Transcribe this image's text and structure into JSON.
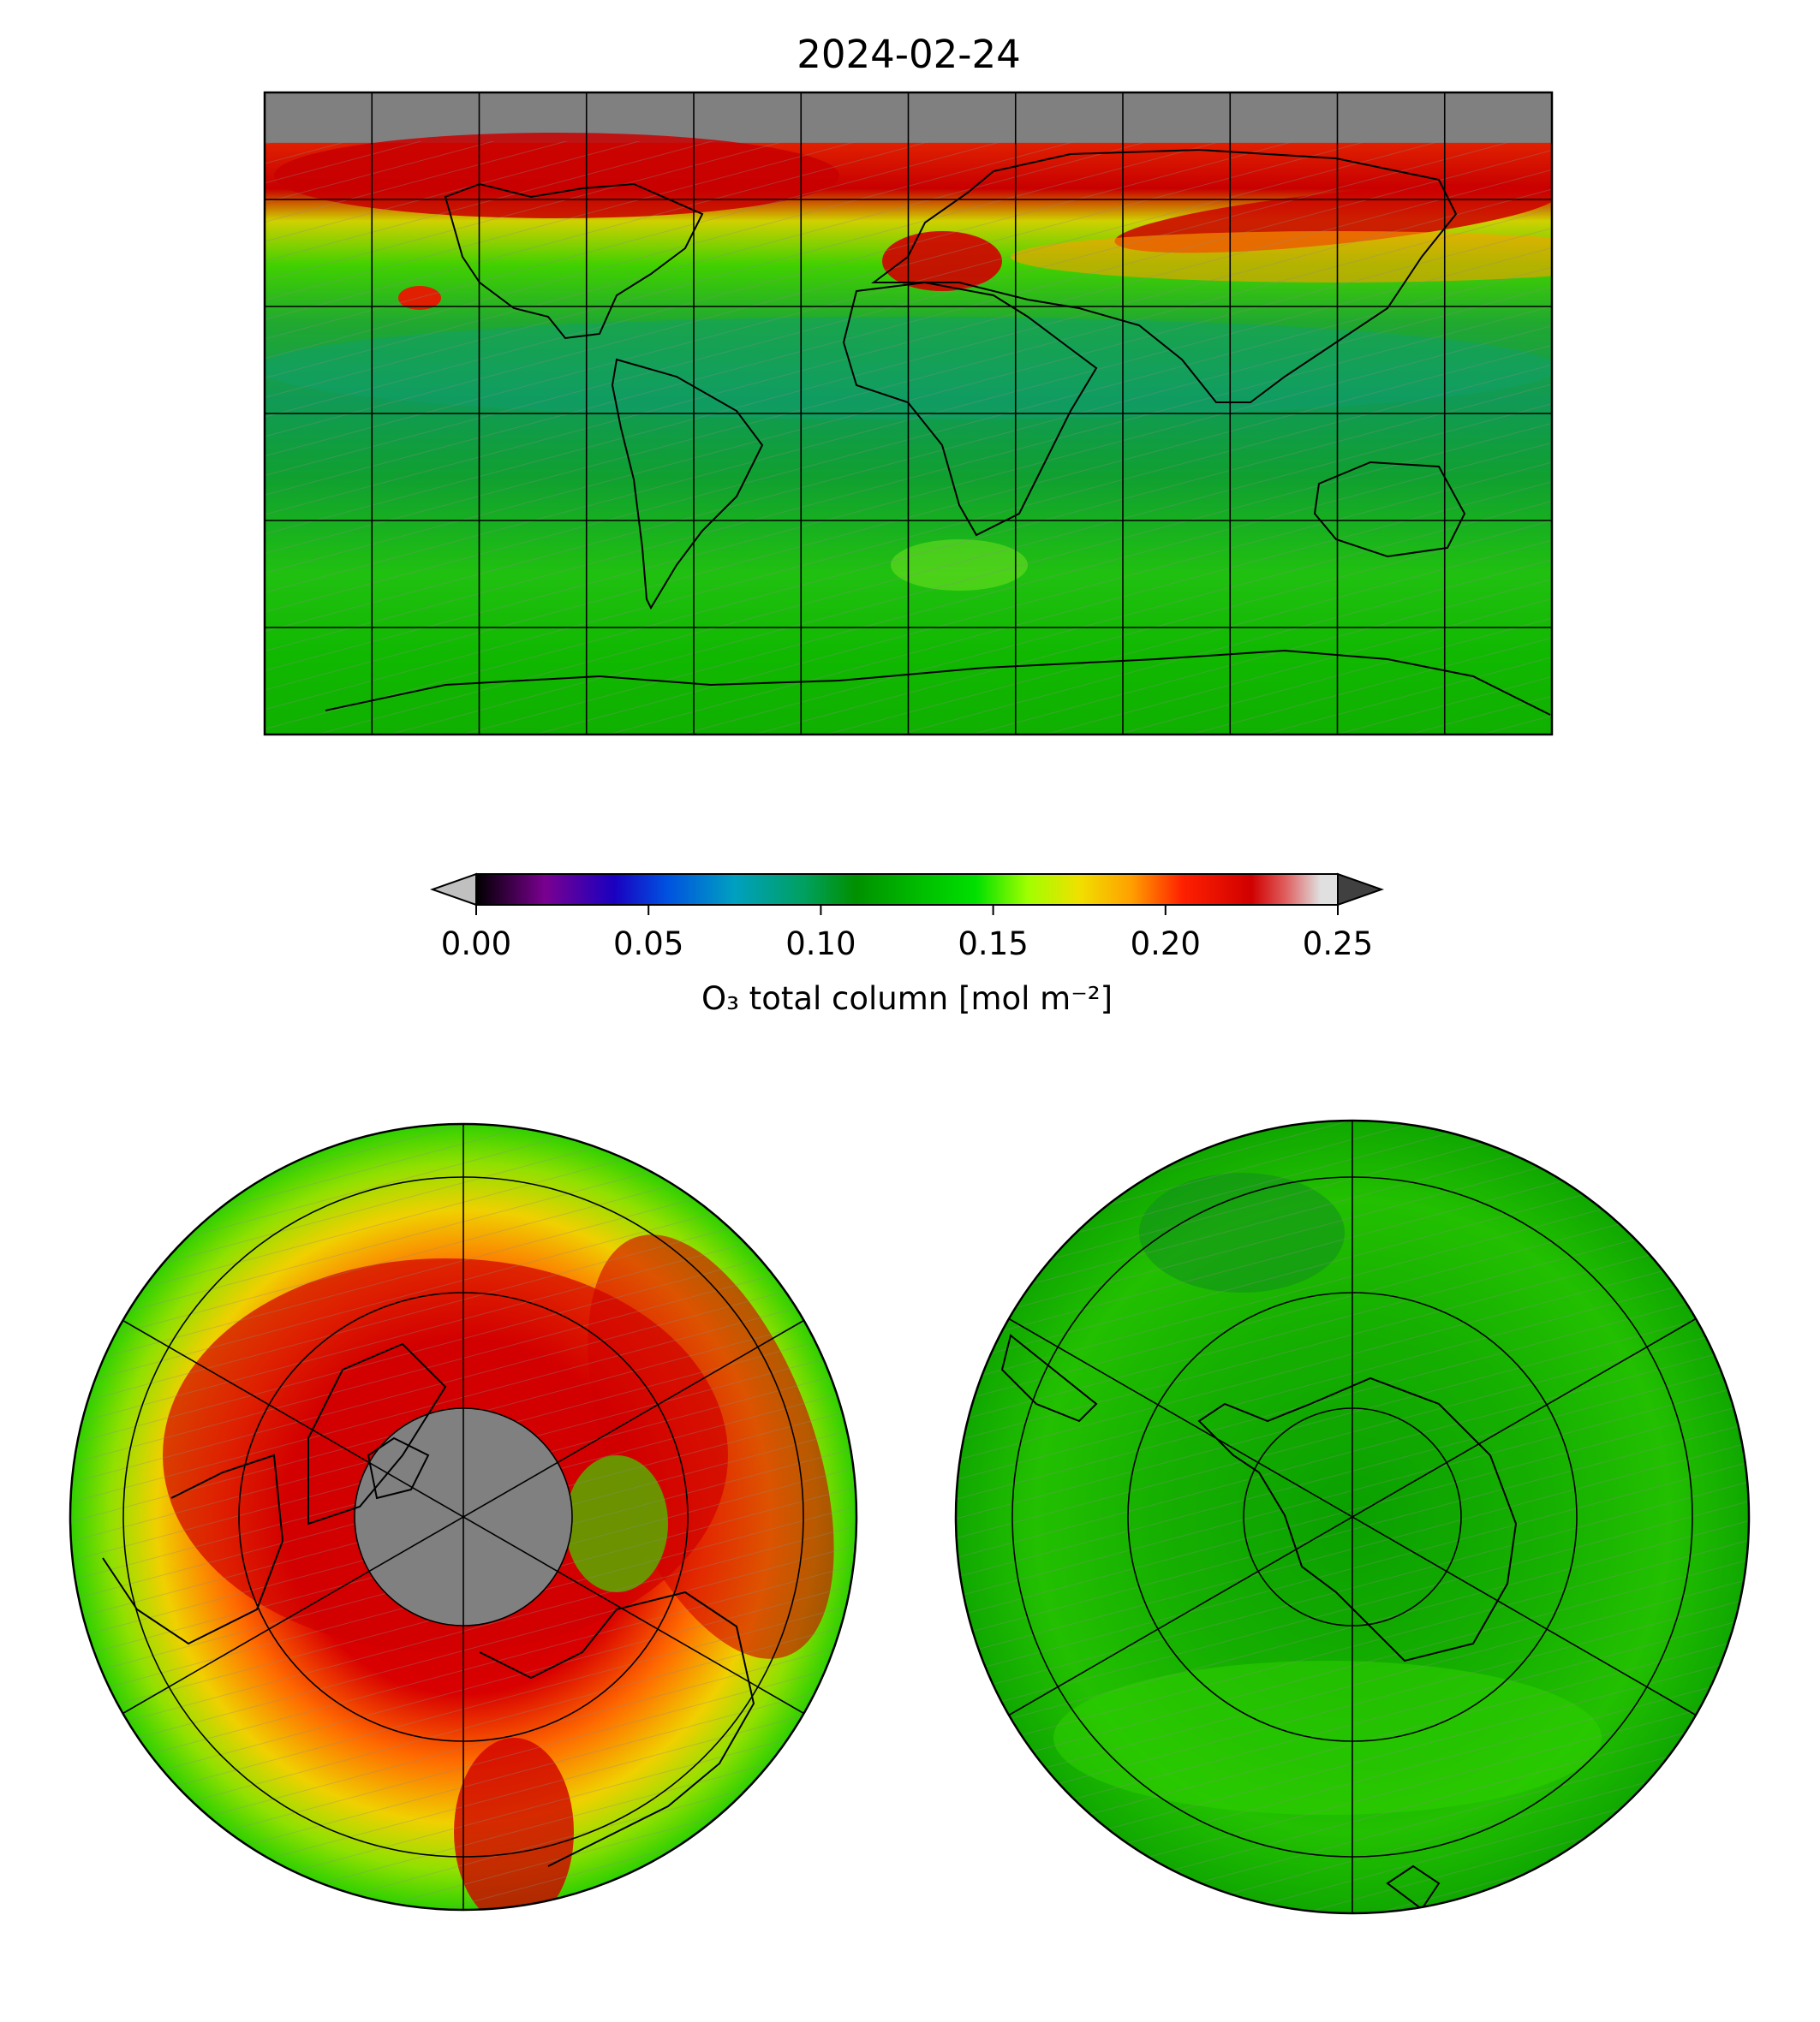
{
  "title": "2024-02-24",
  "colorbar": {
    "label": "O₃ total column [mol m⁻²]",
    "min": 0.0,
    "max": 0.25,
    "ticks": [
      "0.00",
      "0.05",
      "0.10",
      "0.15",
      "0.20",
      "0.25"
    ],
    "tick_values": [
      0.0,
      0.05,
      0.1,
      0.15,
      0.2,
      0.25
    ],
    "under_color": "#c0c0c0",
    "over_color": "#404040",
    "colors": [
      {
        "v": 0.0,
        "c": "#000000"
      },
      {
        "v": 0.02,
        "c": "#7a0090"
      },
      {
        "v": 0.04,
        "c": "#1a00c0"
      },
      {
        "v": 0.055,
        "c": "#0050e0"
      },
      {
        "v": 0.075,
        "c": "#00a0c0"
      },
      {
        "v": 0.095,
        "c": "#00a060"
      },
      {
        "v": 0.11,
        "c": "#009000"
      },
      {
        "v": 0.13,
        "c": "#00c000"
      },
      {
        "v": 0.145,
        "c": "#00e000"
      },
      {
        "v": 0.16,
        "c": "#a0ff00"
      },
      {
        "v": 0.175,
        "c": "#f0e000"
      },
      {
        "v": 0.19,
        "c": "#ffa000"
      },
      {
        "v": 0.205,
        "c": "#ff2000"
      },
      {
        "v": 0.225,
        "c": "#d00000"
      },
      {
        "v": 0.235,
        "c": "#e06060"
      },
      {
        "v": 0.245,
        "c": "#e0e0e0"
      }
    ]
  },
  "panels": {
    "global": {
      "projection": "equirectangular",
      "no_data_color": "#808080"
    },
    "north_pole": {
      "projection": "north-polar-stereographic",
      "no_data_color": "#808080"
    },
    "south_pole": {
      "projection": "south-polar-stereographic"
    }
  }
}
